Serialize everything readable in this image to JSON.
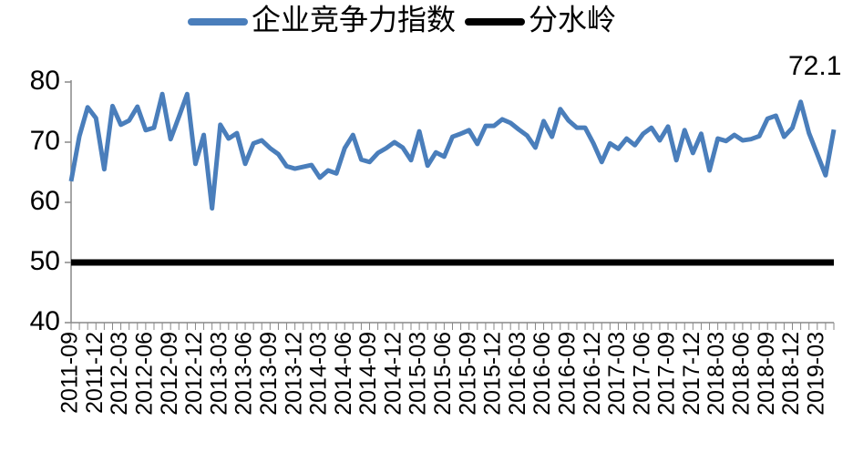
{
  "chart_data": {
    "type": "line",
    "categories": [
      "2011-09",
      null,
      null,
      "2011-12",
      null,
      null,
      "2012-03",
      null,
      null,
      "2012-06",
      null,
      null,
      "2012-09",
      null,
      null,
      "2012-12",
      null,
      null,
      "2013-03",
      null,
      null,
      "2013-06",
      null,
      null,
      "2013-09",
      null,
      null,
      "2013-12",
      null,
      null,
      "2014-03",
      null,
      null,
      "2014-06",
      null,
      null,
      "2014-09",
      null,
      null,
      "2014-12",
      null,
      null,
      "2015-03",
      null,
      null,
      "2015-06",
      null,
      null,
      "2015-09",
      null,
      null,
      "2015-12",
      null,
      null,
      "2016-03",
      null,
      null,
      "2016-06",
      null,
      null,
      "2016-09",
      null,
      null,
      "2016-12",
      null,
      null,
      "2017-03",
      null,
      null,
      "2017-06",
      null,
      null,
      "2017-09",
      null,
      null,
      "2017-12",
      null,
      null,
      "2018-03",
      null,
      null,
      "2018-06",
      null,
      null,
      "2018-09",
      null,
      null,
      "2018-12",
      null,
      null,
      "2019-03",
      null,
      null
    ],
    "series": [
      {
        "name": "企业竞争力指数",
        "color": "#4a7ebb",
        "label_last": true,
        "values": [
          63.5,
          71,
          75.8,
          74,
          65.5,
          76,
          72.9,
          73.6,
          75.9,
          72,
          72.4,
          78,
          70.5,
          74.2,
          78,
          66.4,
          71.2,
          59,
          72.9,
          70.6,
          71.5,
          66.4,
          69.8,
          70.3,
          69,
          68,
          66,
          65.6,
          65.9,
          66.2,
          64.1,
          65.3,
          64.8,
          69,
          71.2,
          67.1,
          66.7,
          68.2,
          69,
          70,
          69.1,
          67,
          71.8,
          66.1,
          68.3,
          67.6,
          70.9,
          71.4,
          72,
          69.7,
          72.7,
          72.7,
          73.8,
          73.2,
          72.1,
          71.1,
          69.1,
          73.5,
          70.9,
          75.5,
          73.6,
          72.4,
          72.4,
          69.8,
          66.7,
          69.8,
          68.9,
          70.6,
          69.5,
          71.4,
          72.4,
          70.3,
          72.6,
          67,
          72,
          68.2,
          71.4,
          65.3,
          70.6,
          70.2,
          71.2,
          70.3,
          70.5,
          71,
          73.9,
          74.4,
          70.9,
          72.4,
          76.7,
          71.5,
          68,
          64.5,
          72.1
        ]
      },
      {
        "name": "分水岭",
        "color": "#000000",
        "values": [
          50,
          50,
          50,
          50,
          50,
          50,
          50,
          50,
          50,
          50,
          50,
          50,
          50,
          50,
          50,
          50,
          50,
          50,
          50,
          50,
          50,
          50,
          50,
          50,
          50,
          50,
          50,
          50,
          50,
          50,
          50,
          50,
          50,
          50,
          50,
          50,
          50,
          50,
          50,
          50,
          50,
          50,
          50,
          50,
          50,
          50,
          50,
          50,
          50,
          50,
          50,
          50,
          50,
          50,
          50,
          50,
          50,
          50,
          50,
          50,
          50,
          50,
          50,
          50,
          50,
          50,
          50,
          50,
          50,
          50,
          50,
          50,
          50,
          50,
          50,
          50,
          50,
          50,
          50,
          50,
          50,
          50,
          50,
          50,
          50,
          50,
          50,
          50,
          50,
          50,
          50,
          50,
          50
        ]
      }
    ],
    "ylim": [
      40,
      80
    ],
    "yticks": [
      40,
      50,
      60,
      70,
      80
    ],
    "legend": "top"
  }
}
